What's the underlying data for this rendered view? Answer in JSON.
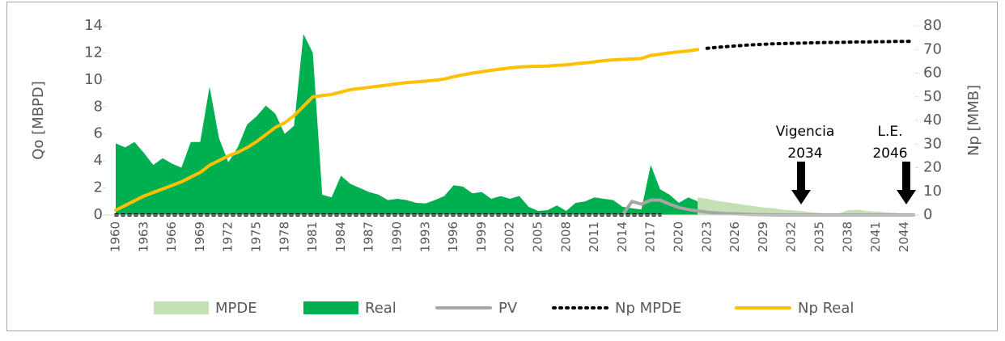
{
  "chart_data": {
    "type": "combo",
    "y_axis_label": "Qo [MBPD]",
    "y2_axis_label": "Np [MMB]",
    "categories": [
      1960,
      null,
      null,
      1963,
      null,
      null,
      1966,
      null,
      null,
      1969,
      null,
      null,
      1972,
      null,
      null,
      1975,
      null,
      null,
      1978,
      null,
      null,
      1981,
      null,
      null,
      1984,
      null,
      null,
      1987,
      null,
      null,
      1990,
      null,
      null,
      1993,
      null,
      null,
      1996,
      null,
      null,
      1999,
      null,
      null,
      2002,
      null,
      null,
      2005,
      null,
      null,
      2008,
      null,
      null,
      2011,
      null,
      null,
      2014,
      null,
      null,
      2017,
      null,
      null,
      2020,
      null,
      null,
      2023,
      null,
      null,
      2026,
      null,
      null,
      2029,
      null,
      null,
      2032,
      null,
      null,
      2035,
      null,
      null,
      2038,
      null,
      null,
      2041,
      null,
      null,
      2044,
      null
    ],
    "ylim": [
      0,
      14
    ],
    "yticks": [
      0,
      2,
      4,
      6,
      8,
      10,
      12,
      14
    ],
    "y2lim": [
      0,
      80
    ],
    "y2ticks": [
      0,
      10,
      20,
      30,
      40,
      50,
      60,
      70,
      80
    ],
    "series": [
      {
        "name": "MPDE",
        "color": "#c5e0b4",
        "style": "area",
        "values": [
          null,
          null,
          null,
          null,
          null,
          null,
          null,
          null,
          null,
          null,
          null,
          null,
          null,
          null,
          null,
          null,
          null,
          null,
          null,
          null,
          null,
          null,
          null,
          null,
          null,
          null,
          null,
          null,
          null,
          null,
          null,
          null,
          null,
          null,
          null,
          null,
          null,
          null,
          null,
          null,
          null,
          null,
          null,
          null,
          null,
          null,
          null,
          null,
          null,
          null,
          null,
          null,
          null,
          null,
          null,
          null,
          null,
          null,
          null,
          null,
          null,
          null,
          1.3,
          1.2,
          1.05,
          0.95,
          0.85,
          0.75,
          0.65,
          0.55,
          0.5,
          0.4,
          0.35,
          0.3,
          0.2,
          0.15,
          0.1,
          0.1,
          0.35,
          0.4,
          0.3,
          0.25,
          0.2,
          0.15,
          0.1,
          0.05
        ]
      },
      {
        "name": "Real",
        "color": "#00b050",
        "style": "area",
        "values": [
          5.3,
          5,
          5.4,
          4.6,
          3.7,
          4.2,
          3.8,
          3.5,
          5.4,
          5.4,
          9.5,
          5.7,
          3.9,
          5,
          6.7,
          7.3,
          8.1,
          7.5,
          6,
          6.6,
          13.4,
          12,
          1.5,
          1.3,
          2.9,
          2.3,
          2,
          1.7,
          1.5,
          1.1,
          1.2,
          1.1,
          0.9,
          0.85,
          1.1,
          1.4,
          2.2,
          2.1,
          1.6,
          1.7,
          1.2,
          1.4,
          1.2,
          1.4,
          0.6,
          0.3,
          0.35,
          0.7,
          0.3,
          0.9,
          1,
          1.3,
          1.2,
          1.1,
          0.6,
          0.5,
          0.4,
          3.7,
          1.9,
          1.5,
          0.9,
          1.3,
          1,
          null,
          null,
          null,
          null,
          null,
          null,
          null,
          null,
          null,
          null,
          null,
          null,
          null,
          null,
          null,
          null,
          null,
          null,
          null,
          null,
          null,
          null,
          null
        ]
      },
      {
        "name": "PV",
        "color": "#a6a6a6",
        "style": "line",
        "values": [
          null,
          null,
          null,
          null,
          null,
          null,
          null,
          null,
          null,
          null,
          null,
          null,
          null,
          null,
          null,
          null,
          null,
          null,
          null,
          null,
          null,
          null,
          null,
          null,
          null,
          null,
          null,
          null,
          null,
          null,
          null,
          null,
          null,
          null,
          null,
          null,
          null,
          null,
          null,
          null,
          null,
          null,
          null,
          null,
          null,
          null,
          null,
          null,
          null,
          null,
          null,
          null,
          null,
          null,
          0,
          1,
          0.8,
          1.1,
          1.1,
          0.8,
          0.55,
          0.4,
          0.3,
          0.2,
          0.15,
          0.1,
          0.08,
          0.05,
          0.03,
          0.02,
          0.01,
          0,
          0,
          0,
          0,
          0,
          0,
          0,
          0,
          0,
          0,
          0,
          0,
          0,
          0,
          0
        ]
      },
      {
        "name": "Np MPDE",
        "color": "#000000",
        "style": "dotted",
        "axis": "y2",
        "values": [
          0,
          0,
          0,
          0,
          0,
          0,
          0,
          0,
          0,
          0,
          0,
          0,
          0,
          0,
          0,
          0,
          0,
          0,
          0,
          0,
          0,
          0,
          0,
          0,
          0,
          0,
          0,
          0,
          0,
          0,
          0,
          0,
          0,
          0,
          0,
          0,
          0,
          0,
          0,
          0,
          0,
          0,
          0,
          0,
          0,
          0,
          0,
          0,
          0,
          0,
          0,
          0,
          0,
          0,
          0,
          0,
          0,
          0,
          0,
          null,
          null,
          null,
          null,
          70.5,
          70.9,
          71.2,
          71.5,
          71.8,
          72,
          72.2,
          72.4,
          72.5,
          72.6,
          72.7,
          72.8,
          72.9,
          73,
          73,
          73.1,
          73.2,
          73.2,
          73.3,
          73.3,
          73.4,
          73.4,
          73.5
        ]
      },
      {
        "name": "Np Real",
        "color": "#ffc000",
        "style": "line",
        "axis": "y2",
        "values": [
          2,
          4,
          6,
          8,
          9.5,
          11,
          12.5,
          14,
          16,
          18,
          21,
          23,
          25,
          26.5,
          28.5,
          31,
          34,
          37,
          39,
          42,
          46,
          50,
          50.5,
          51,
          52,
          53,
          53.5,
          54,
          54.5,
          55,
          55.5,
          56,
          56.3,
          56.6,
          57,
          57.5,
          58.5,
          59.3,
          60,
          60.6,
          61.2,
          61.7,
          62.2,
          62.6,
          62.8,
          62.9,
          63,
          63.3,
          63.5,
          64,
          64.3,
          64.8,
          65.3,
          65.6,
          65.8,
          66,
          66.2,
          67.5,
          68,
          68.6,
          69,
          69.4,
          70,
          null,
          null,
          null,
          null,
          null,
          null,
          null,
          null,
          null,
          null,
          null,
          null,
          null,
          null,
          null,
          null,
          null,
          null,
          null,
          null,
          null,
          null,
          null
        ]
      }
    ],
    "annotations": [
      {
        "lines": [
          "Vigencia",
          "2034"
        ]
      },
      {
        "lines": [
          "L.E.",
          "2046"
        ]
      }
    ]
  }
}
